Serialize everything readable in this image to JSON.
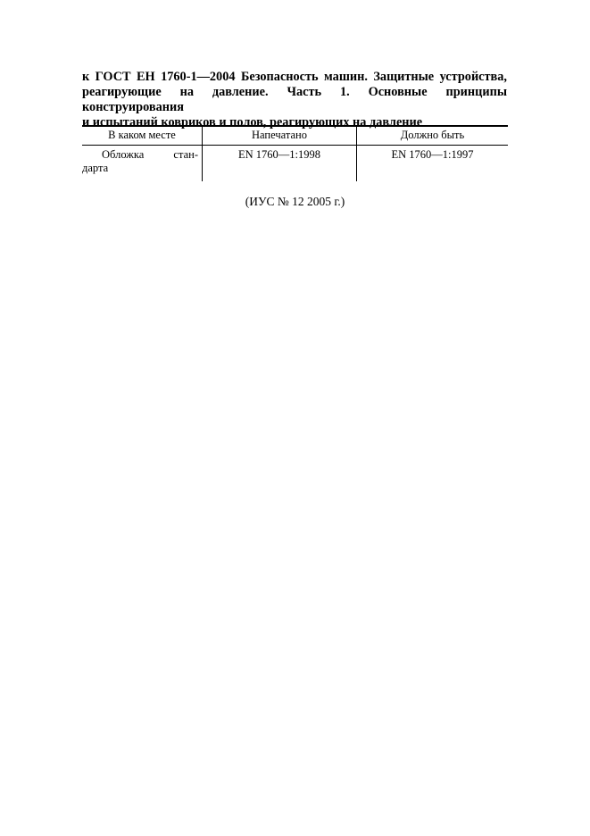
{
  "title_lines": [
    "к ГОСТ ЕН 1760-1—2004 Безопасность машин. Защитные устройства,",
    "реагирующие на давление. Часть 1. Основные принципы конструирования",
    "и испытаний ковриков и полов, реагирующих на давление"
  ],
  "table": {
    "headers": [
      "В каком месте",
      "Напечатано",
      "Должно быть"
    ],
    "rows": [
      {
        "place_line1": "Обложка стан-",
        "place_line2": "дарта",
        "printed": "EN 1760—1:1998",
        "should_be": "EN 1760—1:1997"
      }
    ]
  },
  "footer": "(ИУС № 12 2005 г.)"
}
